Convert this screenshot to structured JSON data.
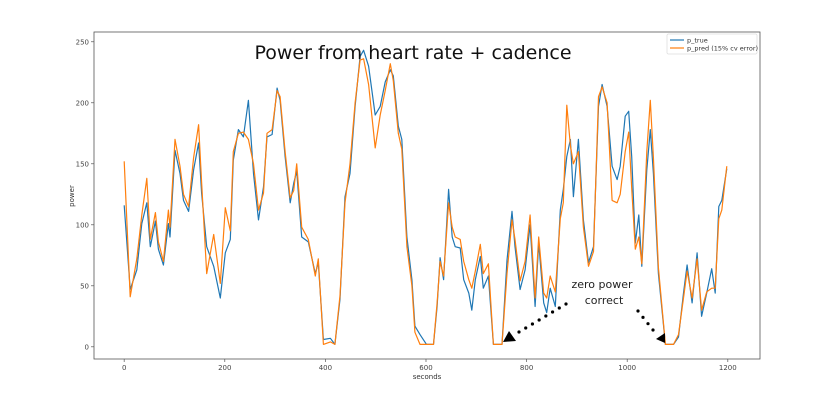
{
  "chart_data": {
    "type": "line",
    "title": "Power from heart rate + cadence",
    "xlabel": "seconds",
    "ylabel": "power",
    "xlim": [
      -60,
      1264
    ],
    "ylim": [
      -10,
      258
    ],
    "xticks": [
      0,
      200,
      400,
      600,
      800,
      1000,
      1200
    ],
    "yticks": [
      0,
      50,
      100,
      150,
      200,
      250
    ],
    "grid": false,
    "legend_position": "top-right",
    "series": [
      {
        "name": "p_true",
        "color": "#1f77b4",
        "x": [
          0,
          12,
          25,
          35,
          45,
          52,
          62,
          68,
          78,
          88,
          91,
          101,
          111,
          118,
          128,
          138,
          148,
          154,
          164,
          178,
          191,
          201,
          211,
          217,
          227,
          237,
          247,
          257,
          267,
          277,
          284,
          294,
          304,
          310,
          320,
          330,
          337,
          343,
          353,
          366,
          380,
          386,
          396,
          410,
          419,
          429,
          439,
          449,
          459,
          469,
          476,
          486,
          499,
          509,
          519,
          529,
          535,
          545,
          552,
          562,
          572,
          578,
          588,
          601,
          615,
          622,
          628,
          635,
          645,
          652,
          658,
          668,
          675,
          685,
          691,
          698,
          708,
          714,
          724,
          734,
          751,
          761,
          771,
          777,
          787,
          797,
          807,
          817,
          824,
          834,
          840,
          847,
          857,
          867,
          873,
          880,
          887,
          893,
          903,
          913,
          923,
          933,
          943,
          950,
          960,
          970,
          980,
          986,
          996,
          1003,
          1009,
          1016,
          1023,
          1029,
          1039,
          1046,
          1052,
          1062,
          1076,
          1092,
          1102,
          1112,
          1119,
          1129,
          1139,
          1148,
          1158,
          1168,
          1175,
          1182,
          1188,
          1198
        ],
        "y": [
          116,
          47,
          63,
          101,
          118,
          82,
          103,
          80,
          67,
          101,
          90,
          161,
          142,
          120,
          111,
          145,
          167,
          126,
          82,
          66,
          40,
          77,
          88,
          153,
          178,
          172,
          202,
          142,
          104,
          131,
          172,
          174,
          212,
          202,
          156,
          118,
          134,
          144,
          90,
          86,
          60,
          69,
          6,
          7,
          2,
          39,
          123,
          142,
          197,
          238,
          243,
          230,
          190,
          197,
          217,
          227,
          222,
          181,
          170,
          90,
          55,
          17,
          10,
          2,
          2,
          33,
          73,
          55,
          129,
          90,
          82,
          81,
          55,
          44,
          30,
          55,
          74,
          48,
          58,
          2,
          2,
          71,
          111,
          82,
          47,
          63,
          100,
          33,
          85,
          36,
          28,
          48,
          33,
          112,
          129,
          156,
          170,
          123,
          170,
          104,
          69,
          82,
          197,
          215,
          197,
          148,
          137,
          148,
          189,
          193,
          156,
          85,
          108,
          66,
          145,
          178,
          142,
          60,
          2,
          2,
          8,
          44,
          67,
          36,
          77,
          25,
          44,
          64,
          44,
          115,
          120,
          146
        ]
      },
      {
        "name": "p_pred (15% cv error)",
        "color": "#ff7f0e",
        "x": [
          0,
          12,
          25,
          35,
          45,
          52,
          62,
          68,
          78,
          88,
          91,
          101,
          111,
          118,
          128,
          138,
          148,
          154,
          164,
          178,
          191,
          201,
          211,
          217,
          227,
          237,
          247,
          257,
          267,
          277,
          284,
          294,
          304,
          310,
          320,
          330,
          337,
          343,
          353,
          366,
          380,
          386,
          396,
          410,
          419,
          429,
          439,
          449,
          459,
          469,
          476,
          486,
          499,
          509,
          519,
          529,
          535,
          545,
          552,
          562,
          572,
          578,
          588,
          601,
          615,
          622,
          628,
          635,
          645,
          652,
          658,
          668,
          675,
          685,
          691,
          698,
          708,
          714,
          724,
          734,
          751,
          761,
          771,
          777,
          787,
          797,
          807,
          817,
          824,
          834,
          840,
          847,
          857,
          867,
          873,
          880,
          887,
          893,
          903,
          913,
          923,
          933,
          943,
          950,
          960,
          970,
          980,
          986,
          996,
          1003,
          1009,
          1016,
          1023,
          1029,
          1039,
          1046,
          1052,
          1062,
          1076,
          1092,
          1102,
          1112,
          1119,
          1129,
          1139,
          1148,
          1158,
          1168,
          1175,
          1182,
          1188,
          1198
        ],
        "y": [
          152,
          41,
          72,
          108,
          138,
          88,
          110,
          86,
          70,
          112,
          98,
          170,
          148,
          125,
          115,
          155,
          182,
          135,
          60,
          92,
          52,
          114,
          95,
          160,
          175,
          176,
          170,
          150,
          112,
          126,
          175,
          178,
          210,
          205,
          160,
          122,
          128,
          150,
          98,
          88,
          58,
          72,
          2,
          4,
          2,
          42,
          118,
          150,
          200,
          235,
          236,
          215,
          163,
          190,
          210,
          232,
          218,
          175,
          162,
          82,
          50,
          12,
          2,
          2,
          2,
          36,
          70,
          58,
          118,
          98,
          90,
          88,
          70,
          55,
          48,
          62,
          84,
          60,
          68,
          2,
          2,
          60,
          104,
          88,
          54,
          70,
          108,
          40,
          90,
          44,
          40,
          58,
          45,
          105,
          118,
          198,
          165,
          150,
          160,
          98,
          66,
          78,
          205,
          213,
          200,
          120,
          118,
          125,
          160,
          176,
          130,
          80,
          90,
          68,
          160,
          202,
          155,
          65,
          2,
          2,
          10,
          40,
          62,
          40,
          72,
          30,
          45,
          48,
          48,
          105,
          112,
          148
        ]
      }
    ],
    "annotations": [
      {
        "text_line1": "zero power",
        "text_line2": "correct"
      }
    ]
  }
}
